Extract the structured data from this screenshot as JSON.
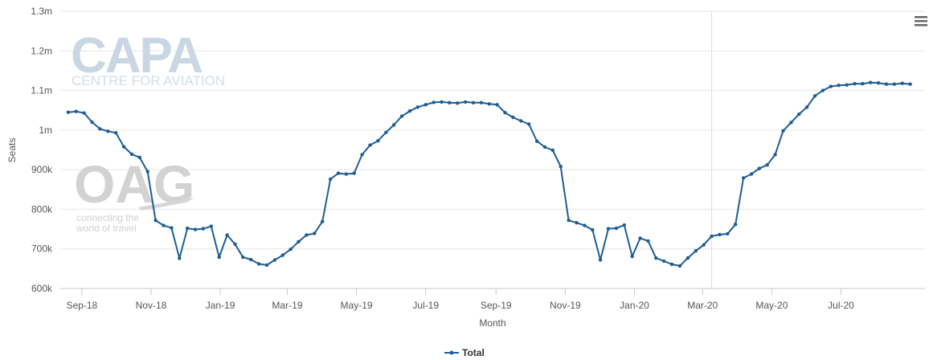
{
  "chart_data": {
    "type": "line",
    "xlabel": "Month",
    "ylabel": "Seats",
    "ylim": [
      600000,
      1300000
    ],
    "yticks": [
      {
        "value": 600000,
        "label": "600k"
      },
      {
        "value": 700000,
        "label": "700k"
      },
      {
        "value": 800000,
        "label": "800k"
      },
      {
        "value": 900000,
        "label": "900k"
      },
      {
        "value": 1000000,
        "label": "1m"
      },
      {
        "value": 1100000,
        "label": "1.1m"
      },
      {
        "value": 1200000,
        "label": "1.2m"
      },
      {
        "value": 1300000,
        "label": "1.3m"
      }
    ],
    "xticks": [
      {
        "date": "2018-09-01",
        "label": "Sep-18"
      },
      {
        "date": "2018-11-01",
        "label": "Nov-18"
      },
      {
        "date": "2019-01-01",
        "label": "Jan-19"
      },
      {
        "date": "2019-03-01",
        "label": "Mar-19"
      },
      {
        "date": "2019-05-01",
        "label": "May-19"
      },
      {
        "date": "2019-07-01",
        "label": "Jul-19"
      },
      {
        "date": "2019-09-01",
        "label": "Sep-19"
      },
      {
        "date": "2019-11-01",
        "label": "Nov-19"
      },
      {
        "date": "2020-01-01",
        "label": "Jan-20"
      },
      {
        "date": "2020-03-01",
        "label": "Mar-20"
      },
      {
        "date": "2020-05-01",
        "label": "May-20"
      },
      {
        "date": "2020-07-01",
        "label": "Jul-20"
      }
    ],
    "xlim": [
      "2018-08-13",
      "2020-09-13"
    ],
    "plot_line_date": "2020-03-09",
    "legend_position": "bottom-center",
    "grid": true,
    "series": [
      {
        "name": "Total",
        "color": "#1f5d95",
        "points": [
          [
            "2018-08-20",
            1045000
          ],
          [
            "2018-08-27",
            1047000
          ],
          [
            "2018-09-03",
            1043000
          ],
          [
            "2018-09-10",
            1020000
          ],
          [
            "2018-09-17",
            1003000
          ],
          [
            "2018-09-24",
            997000
          ],
          [
            "2018-10-01",
            993000
          ],
          [
            "2018-10-08",
            958000
          ],
          [
            "2018-10-15",
            939000
          ],
          [
            "2018-10-22",
            931000
          ],
          [
            "2018-10-29",
            895000
          ],
          [
            "2018-11-05",
            772000
          ],
          [
            "2018-11-12",
            759000
          ],
          [
            "2018-11-19",
            753000
          ],
          [
            "2018-11-26",
            676000
          ],
          [
            "2018-12-03",
            752000
          ],
          [
            "2018-12-10",
            749000
          ],
          [
            "2018-12-17",
            751000
          ],
          [
            "2018-12-24",
            757000
          ],
          [
            "2018-12-31",
            679000
          ],
          [
            "2019-01-07",
            735000
          ],
          [
            "2019-01-14",
            712000
          ],
          [
            "2019-01-21",
            679000
          ],
          [
            "2019-01-28",
            673000
          ],
          [
            "2019-02-04",
            662000
          ],
          [
            "2019-02-11",
            659000
          ],
          [
            "2019-02-18",
            672000
          ],
          [
            "2019-02-25",
            684000
          ],
          [
            "2019-03-04",
            699000
          ],
          [
            "2019-03-11",
            718000
          ],
          [
            "2019-03-18",
            735000
          ],
          [
            "2019-03-25",
            739000
          ],
          [
            "2019-04-01",
            769000
          ],
          [
            "2019-04-08",
            876000
          ],
          [
            "2019-04-15",
            891000
          ],
          [
            "2019-04-22",
            889000
          ],
          [
            "2019-04-29",
            891000
          ],
          [
            "2019-05-06",
            938000
          ],
          [
            "2019-05-13",
            962000
          ],
          [
            "2019-05-20",
            973000
          ],
          [
            "2019-05-27",
            994000
          ],
          [
            "2019-06-03",
            1013000
          ],
          [
            "2019-06-10",
            1035000
          ],
          [
            "2019-06-17",
            1048000
          ],
          [
            "2019-06-24",
            1058000
          ],
          [
            "2019-07-01",
            1064000
          ],
          [
            "2019-07-08",
            1070000
          ],
          [
            "2019-07-15",
            1071000
          ],
          [
            "2019-07-22",
            1069000
          ],
          [
            "2019-07-29",
            1068000
          ],
          [
            "2019-08-05",
            1071000
          ],
          [
            "2019-08-12",
            1069000
          ],
          [
            "2019-08-19",
            1069000
          ],
          [
            "2019-08-26",
            1066000
          ],
          [
            "2019-09-02",
            1064000
          ],
          [
            "2019-09-09",
            1044000
          ],
          [
            "2019-09-16",
            1032000
          ],
          [
            "2019-09-23",
            1023000
          ],
          [
            "2019-09-30",
            1015000
          ],
          [
            "2019-10-07",
            972000
          ],
          [
            "2019-10-14",
            957000
          ],
          [
            "2019-10-21",
            949000
          ],
          [
            "2019-10-28",
            908000
          ],
          [
            "2019-11-04",
            772000
          ],
          [
            "2019-11-11",
            766000
          ],
          [
            "2019-11-18",
            759000
          ],
          [
            "2019-11-25",
            748000
          ],
          [
            "2019-12-02",
            672000
          ],
          [
            "2019-12-09",
            751000
          ],
          [
            "2019-12-16",
            752000
          ],
          [
            "2019-12-23",
            760000
          ],
          [
            "2019-12-30",
            681000
          ],
          [
            "2020-01-06",
            727000
          ],
          [
            "2020-01-13",
            720000
          ],
          [
            "2020-01-20",
            677000
          ],
          [
            "2020-01-27",
            669000
          ],
          [
            "2020-02-03",
            661000
          ],
          [
            "2020-02-10",
            657000
          ],
          [
            "2020-02-17",
            677000
          ],
          [
            "2020-02-24",
            695000
          ],
          [
            "2020-03-02",
            710000
          ],
          [
            "2020-03-09",
            732000
          ],
          [
            "2020-03-16",
            736000
          ],
          [
            "2020-03-23",
            738000
          ],
          [
            "2020-03-30",
            762000
          ],
          [
            "2020-04-06",
            879000
          ],
          [
            "2020-04-13",
            889000
          ],
          [
            "2020-04-20",
            903000
          ],
          [
            "2020-04-27",
            912000
          ],
          [
            "2020-05-04",
            938000
          ],
          [
            "2020-05-11",
            998000
          ],
          [
            "2020-05-18",
            1019000
          ],
          [
            "2020-05-25",
            1040000
          ],
          [
            "2020-06-01",
            1058000
          ],
          [
            "2020-06-08",
            1086000
          ],
          [
            "2020-06-15",
            1100000
          ],
          [
            "2020-06-22",
            1110000
          ],
          [
            "2020-06-29",
            1113000
          ],
          [
            "2020-07-06",
            1114000
          ],
          [
            "2020-07-13",
            1117000
          ],
          [
            "2020-07-20",
            1117000
          ],
          [
            "2020-07-27",
            1120000
          ],
          [
            "2020-08-03",
            1119000
          ],
          [
            "2020-08-10",
            1116000
          ],
          [
            "2020-08-17",
            1116000
          ],
          [
            "2020-08-24",
            1118000
          ],
          [
            "2020-08-31",
            1116000
          ]
        ]
      }
    ]
  },
  "watermarks": {
    "capa_logo": "CAPA",
    "capa_subtitle": "CENTRE FOR AVIATION",
    "oag_logo": "OAG",
    "oag_tagline_1": "connecting the",
    "oag_tagline_2": "world of travel"
  },
  "menu_icon": "hamburger-menu-icon"
}
